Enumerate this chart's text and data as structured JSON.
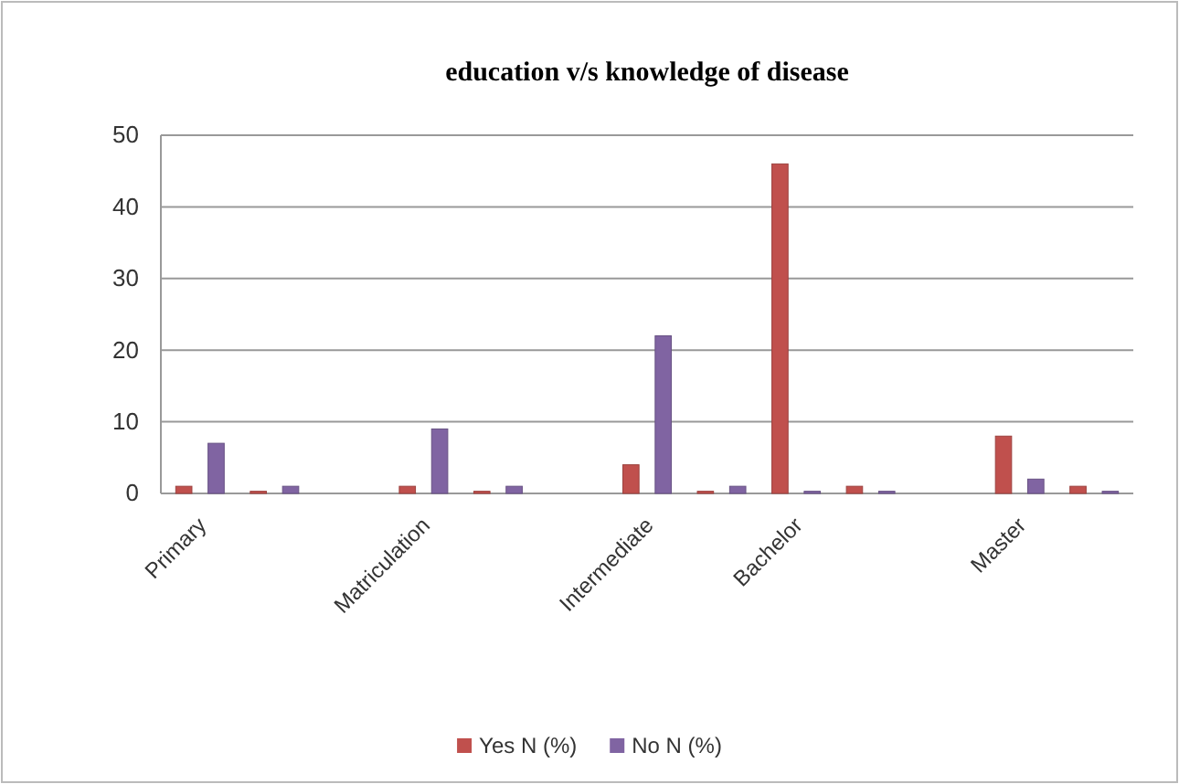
{
  "chart_data": {
    "type": "bar",
    "title": "education v/s knowledge of disease",
    "categories": [
      "Primary",
      null,
      null,
      "Matriculation",
      null,
      null,
      "Intermediate",
      null,
      "Bachelor",
      null,
      null,
      "Master",
      null
    ],
    "series": [
      {
        "name": "Yes N (%)",
        "color": "#c0504d",
        "values": [
          1,
          0.3,
          null,
          1,
          0.3,
          null,
          4,
          0.3,
          46,
          1,
          null,
          8,
          1
        ]
      },
      {
        "name": "No N (%)",
        "color": "#8064a2",
        "values": [
          7,
          1,
          null,
          9,
          1,
          null,
          22,
          1,
          0.3,
          0.3,
          null,
          2,
          0.3
        ]
      }
    ],
    "ylim": [
      0,
      50
    ],
    "yticks": [
      0,
      10,
      20,
      30,
      40,
      50
    ],
    "grid": "y",
    "legend": "bottom"
  }
}
